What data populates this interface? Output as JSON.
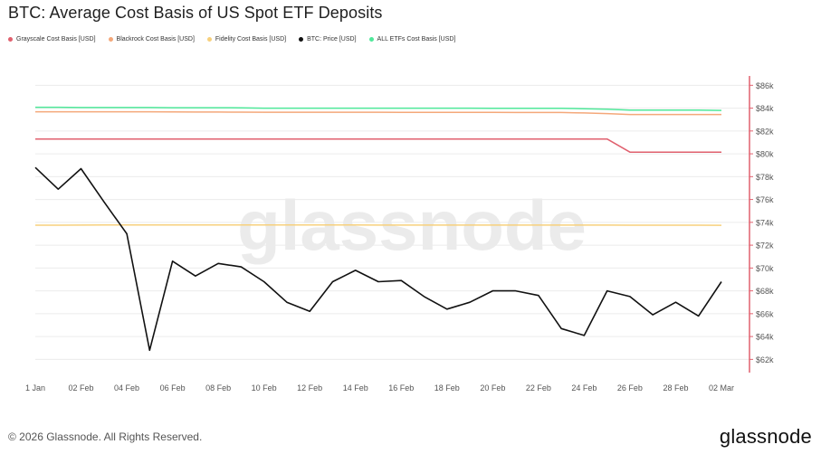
{
  "title": "BTC: Average Cost Basis of US Spot ETF Deposits",
  "watermark": "glassnode",
  "footer": {
    "copyright": "© 2026 Glassnode. All Rights Reserved.",
    "brand": "glassnode"
  },
  "chart_data": {
    "type": "line",
    "x": [
      "1 Jan",
      "2 Jan",
      "02 Feb",
      "03 Feb",
      "04 Feb",
      "05 Feb",
      "06 Feb",
      "07 Feb",
      "08 Feb",
      "09 Feb",
      "10 Feb",
      "11 Feb",
      "12 Feb",
      "13 Feb",
      "14 Feb",
      "15 Feb",
      "16 Feb",
      "17 Feb",
      "18 Feb",
      "19 Feb",
      "20 Feb",
      "21 Feb",
      "22 Feb",
      "23 Feb",
      "24 Feb",
      "25 Feb",
      "26 Feb",
      "27 Feb",
      "28 Feb",
      "01 Mar",
      "02 Mar"
    ],
    "x_ticks": [
      "1 Jan",
      "02 Feb",
      "04 Feb",
      "06 Feb",
      "08 Feb",
      "10 Feb",
      "12 Feb",
      "14 Feb",
      "16 Feb",
      "18 Feb",
      "20 Feb",
      "22 Feb",
      "24 Feb",
      "26 Feb",
      "28 Feb",
      "02 Mar"
    ],
    "y_ticks": [
      "$62k",
      "$64k",
      "$66k",
      "$68k",
      "$70k",
      "$72k",
      "$74k",
      "$76k",
      "$78k",
      "$80k",
      "$82k",
      "$84k",
      "$86k"
    ],
    "ylim": [
      61000,
      86500
    ],
    "grid": true,
    "legend_position": "top-left",
    "series": [
      {
        "name": "Grayscale Cost Basis [USD]",
        "color": "#e0606e",
        "values": [
          81300,
          81300,
          81300,
          81300,
          81300,
          81300,
          81300,
          81300,
          81300,
          81300,
          81300,
          81300,
          81300,
          81300,
          81300,
          81300,
          81300,
          81300,
          81300,
          81300,
          81300,
          81300,
          81300,
          81300,
          81300,
          81300,
          80150,
          80150,
          80150,
          80150,
          80150
        ]
      },
      {
        "name": "Blackrock Cost Basis [USD]",
        "color": "#f4a87a",
        "values": [
          83680,
          83680,
          83680,
          83680,
          83680,
          83680,
          83670,
          83660,
          83660,
          83650,
          83640,
          83640,
          83640,
          83640,
          83640,
          83640,
          83630,
          83630,
          83630,
          83630,
          83630,
          83620,
          83620,
          83620,
          83580,
          83520,
          83440,
          83440,
          83440,
          83440,
          83440
        ]
      },
      {
        "name": "Fidelity Cost Basis [USD]",
        "color": "#f7d07c",
        "values": [
          73750,
          73750,
          73760,
          73770,
          73770,
          73770,
          73770,
          73770,
          73770,
          73770,
          73770,
          73770,
          73770,
          73770,
          73770,
          73760,
          73760,
          73760,
          73760,
          73760,
          73760,
          73760,
          73760,
          73760,
          73760,
          73760,
          73750,
          73750,
          73750,
          73750,
          73740
        ]
      },
      {
        "name": "BTC: Price [USD]",
        "color": "#111111",
        "values": [
          78800,
          76900,
          78700,
          75800,
          73000,
          62800,
          70600,
          69300,
          70400,
          70100,
          68800,
          67000,
          66200,
          68800,
          69800,
          68800,
          68900,
          67500,
          66400,
          67000,
          68000,
          68000,
          67600,
          64700,
          64100,
          68000,
          67500,
          65900,
          67000,
          65800,
          68800
        ]
      },
      {
        "name": "ALL ETFs Cost Basis [USD]",
        "color": "#4fe89a",
        "values": [
          84080,
          84080,
          84050,
          84050,
          84050,
          84050,
          84040,
          84040,
          84040,
          84030,
          84000,
          84000,
          84000,
          84000,
          84000,
          84000,
          84000,
          84000,
          84000,
          84000,
          83990,
          83990,
          83990,
          83980,
          83950,
          83900,
          83820,
          83820,
          83820,
          83820,
          83800
        ]
      }
    ]
  }
}
